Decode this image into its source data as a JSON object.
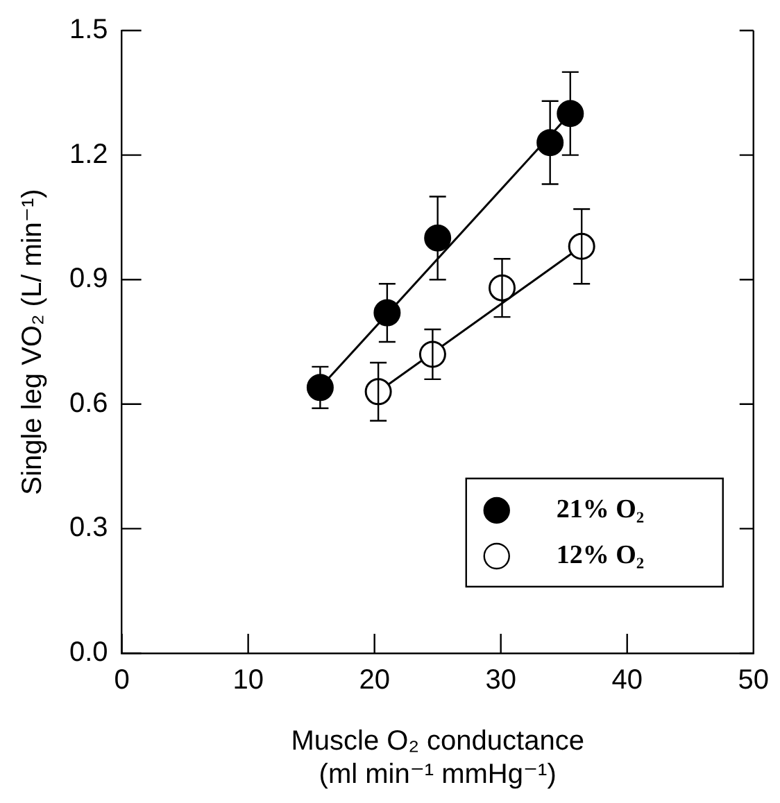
{
  "chart_data": {
    "type": "scatter",
    "xlabel": "Muscle O₂ conductance\n(ml min⁻¹ mmHg⁻¹)",
    "ylabel": "Single leg VO₂ (L/ min⁻¹)",
    "xlim": [
      0,
      50
    ],
    "xticks": [
      0,
      10,
      20,
      30,
      40,
      50
    ],
    "ylim": [
      0,
      1.5
    ],
    "yticks": [
      {
        "value": 0,
        "label": "0.0"
      },
      0.3,
      0.6,
      0.9,
      1.2,
      1.5
    ],
    "grid": false,
    "legend": "bottom right",
    "marker": "circle",
    "series": [
      {
        "name": "21% O₂",
        "color": "#000000",
        "x": [
          15.7,
          21.0,
          25.0,
          33.9,
          35.5
        ],
        "values": [
          0.64,
          0.82,
          1.0,
          1.23,
          1.3
        ],
        "errors": [
          0.05,
          0.07,
          0.1,
          0.1,
          0.1
        ]
      },
      {
        "name": "12% O₂",
        "color": "#ffffff",
        "x": [
          20.3,
          24.6,
          30.1,
          36.4
        ],
        "values": [
          0.63,
          0.72,
          0.88,
          0.98
        ],
        "errors": [
          0.07,
          0.06,
          0.07,
          0.09
        ]
      },
      {
        "type": "line",
        "marker": "none",
        "color": "#000000",
        "x": [
          15.7,
          35.5
        ],
        "values": [
          0.64,
          1.3
        ]
      },
      {
        "type": "line",
        "marker": "none",
        "color": "#000000",
        "x": [
          20.3,
          36.4
        ],
        "values": [
          0.63,
          0.98
        ]
      }
    ]
  }
}
